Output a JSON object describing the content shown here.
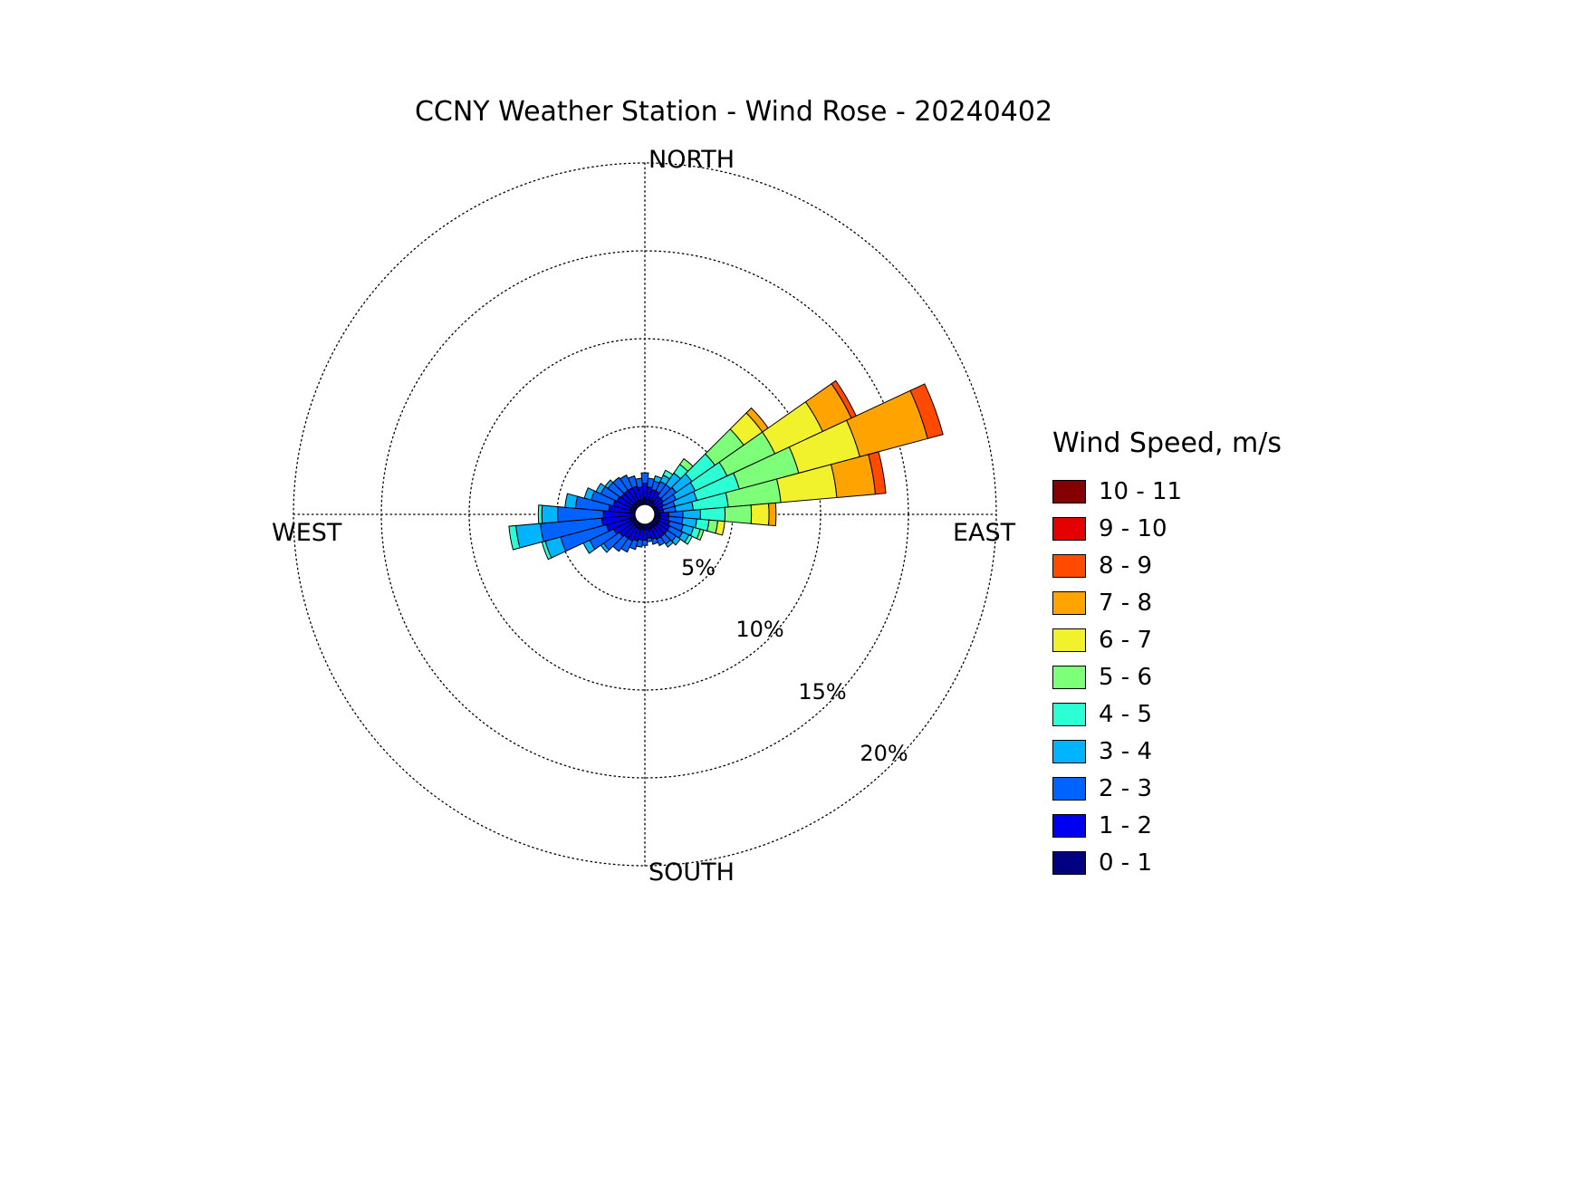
{
  "page": {
    "background": "#ffffff"
  },
  "chart_data": {
    "type": "windrose",
    "title": "CCNY Weather Station - Wind Rose - 20240402",
    "legend_title": "Wind Speed, m/s",
    "radial_unit": "percent",
    "rings_pct": [
      5,
      10,
      15,
      20
    ],
    "ring_labels": [
      "5%",
      "10%",
      "15%",
      "20%"
    ],
    "cardinal_labels": {
      "north": "NORTH",
      "east": "EAST",
      "south": "SOUTH",
      "west": "WEST"
    },
    "sector_width_deg": 10,
    "grid": "dotted",
    "legend_position": "right",
    "legend_order": "descending",
    "speed_bins": [
      {
        "label": "0 - 1",
        "color": "#000080"
      },
      {
        "label": "1 - 2",
        "color": "#0000f0"
      },
      {
        "label": "2 - 3",
        "color": "#0062ff"
      },
      {
        "label": "3 - 4",
        "color": "#00b4ff"
      },
      {
        "label": "4 - 5",
        "color": "#2cffd4"
      },
      {
        "label": "5 - 6",
        "color": "#7dff7a"
      },
      {
        "label": "6 - 7",
        "color": "#f2f22c"
      },
      {
        "label": "7 - 8",
        "color": "#ffa300"
      },
      {
        "label": "8 - 9",
        "color": "#ff4a00"
      },
      {
        "label": "9 - 10",
        "color": "#e40000"
      },
      {
        "label": "10 - 11",
        "color": "#850000"
      }
    ],
    "directions": [
      {
        "bearing": 0,
        "freq": [
          0.4,
          0.8,
          0.6
        ]
      },
      {
        "bearing": 10,
        "freq": [
          0.3,
          0.7,
          0.5
        ]
      },
      {
        "bearing": 20,
        "freq": [
          0.3,
          0.6,
          0.5,
          0.3
        ]
      },
      {
        "bearing": 30,
        "freq": [
          0.3,
          0.6,
          0.6,
          0.4,
          0.3
        ]
      },
      {
        "bearing": 40,
        "freq": [
          0.2,
          0.5,
          0.8,
          0.8,
          0.6,
          0.4
        ]
      },
      {
        "bearing": 50,
        "freq": [
          0.2,
          0.5,
          0.9,
          1.1,
          1.6,
          2.0,
          1.3,
          0.4
        ]
      },
      {
        "bearing": 60,
        "freq": [
          0.2,
          0.4,
          0.8,
          1.2,
          2.0,
          3.0,
          3.0,
          1.8,
          0.3
        ]
      },
      {
        "bearing": 70,
        "freq": [
          0.2,
          0.3,
          0.7,
          1.3,
          2.5,
          3.5,
          3.6,
          4.0,
          0.9
        ]
      },
      {
        "bearing": 80,
        "freq": [
          0.2,
          0.3,
          0.7,
          1.0,
          2.0,
          3.0,
          3.2,
          2.2,
          0.6
        ]
      },
      {
        "bearing": 90,
        "freq": [
          0.3,
          0.5,
          0.8,
          1.0,
          1.4,
          1.5,
          1.0,
          0.4
        ]
      },
      {
        "bearing": 100,
        "freq": [
          0.3,
          0.5,
          0.8,
          0.8,
          0.7,
          0.5,
          0.4
        ]
      },
      {
        "bearing": 110,
        "freq": [
          0.3,
          0.6,
          0.8,
          0.6,
          0.4,
          0.2
        ]
      },
      {
        "bearing": 120,
        "freq": [
          0.3,
          0.7,
          0.8,
          0.4,
          0.2
        ]
      },
      {
        "bearing": 130,
        "freq": [
          0.3,
          0.7,
          0.6,
          0.3
        ]
      },
      {
        "bearing": 140,
        "freq": [
          0.3,
          0.7,
          0.5,
          0.2
        ]
      },
      {
        "bearing": 150,
        "freq": [
          0.3,
          0.7,
          0.4
        ]
      },
      {
        "bearing": 160,
        "freq": [
          0.3,
          0.6,
          0.3
        ]
      },
      {
        "bearing": 170,
        "freq": [
          0.3,
          0.5,
          0.2
        ]
      },
      {
        "bearing": 180,
        "freq": [
          0.3,
          0.6,
          0.3
        ]
      },
      {
        "bearing": 190,
        "freq": [
          0.3,
          0.6,
          0.4
        ]
      },
      {
        "bearing": 200,
        "freq": [
          0.3,
          0.7,
          0.5
        ]
      },
      {
        "bearing": 210,
        "freq": [
          0.3,
          0.8,
          0.7
        ]
      },
      {
        "bearing": 220,
        "freq": [
          0.3,
          0.8,
          0.9
        ]
      },
      {
        "bearing": 230,
        "freq": [
          0.3,
          0.9,
          1.1,
          0.2
        ]
      },
      {
        "bearing": 240,
        "freq": [
          0.3,
          1.1,
          1.5,
          0.4
        ]
      },
      {
        "bearing": 250,
        "freq": [
          0.3,
          1.4,
          2.7,
          0.9,
          0.2
        ]
      },
      {
        "bearing": 260,
        "freq": [
          0.3,
          1.6,
          3.5,
          1.4,
          0.4
        ]
      },
      {
        "bearing": 270,
        "freq": [
          0.3,
          1.5,
          2.6,
          0.9,
          0.2
        ]
      },
      {
        "bearing": 280,
        "freq": [
          0.3,
          1.2,
          1.9,
          0.6
        ]
      },
      {
        "bearing": 290,
        "freq": [
          0.3,
          1.0,
          1.3,
          0.4
        ]
      },
      {
        "bearing": 300,
        "freq": [
          0.3,
          0.9,
          1.0,
          0.3
        ]
      },
      {
        "bearing": 310,
        "freq": [
          0.3,
          0.8,
          0.9,
          0.2
        ]
      },
      {
        "bearing": 320,
        "freq": [
          0.3,
          0.8,
          0.9
        ]
      },
      {
        "bearing": 330,
        "freq": [
          0.3,
          0.8,
          0.8
        ]
      },
      {
        "bearing": 340,
        "freq": [
          0.3,
          0.8,
          0.6
        ]
      },
      {
        "bearing": 350,
        "freq": [
          0.3,
          0.7,
          0.5
        ]
      }
    ]
  }
}
